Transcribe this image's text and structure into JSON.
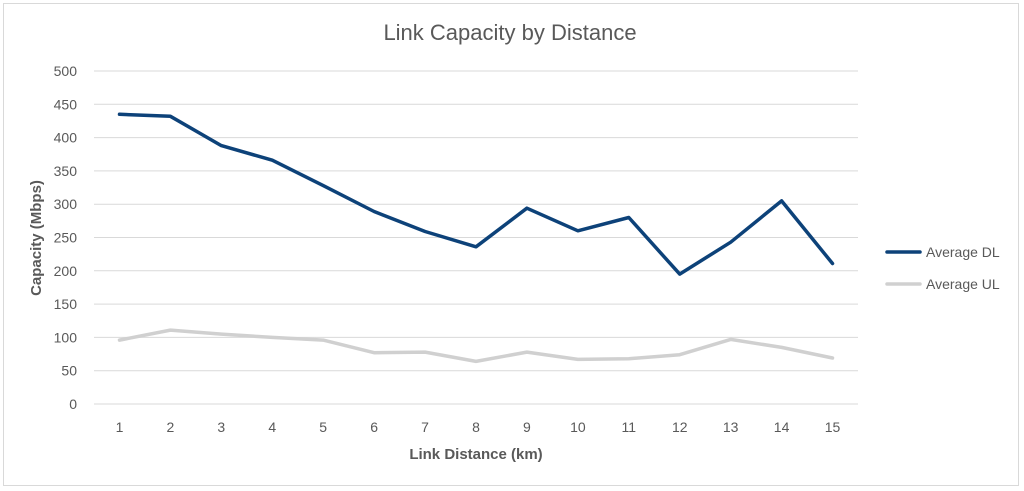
{
  "chart_data": {
    "type": "line",
    "title": "Link Capacity by Distance",
    "xlabel": "Link Distance (km)",
    "ylabel": "Capacity (Mbps)",
    "categories": [
      "1",
      "2",
      "3",
      "4",
      "5",
      "6",
      "7",
      "8",
      "9",
      "10",
      "11",
      "12",
      "13",
      "14",
      "15"
    ],
    "ylim": [
      0,
      500
    ],
    "yticks": [
      "0",
      "50",
      "100",
      "150",
      "200",
      "250",
      "300",
      "350",
      "400",
      "450",
      "500"
    ],
    "grid": true,
    "legend_position": "right",
    "series": [
      {
        "name": "Average DL",
        "color": "#0d4279",
        "values": [
          435,
          432,
          388,
          366,
          328,
          289,
          259,
          236,
          294,
          260,
          280,
          195,
          243,
          305,
          211
        ]
      },
      {
        "name": "Average UL",
        "color": "#d0d0d0",
        "values": [
          96,
          111,
          105,
          100,
          96,
          77,
          78,
          64,
          78,
          67,
          68,
          74,
          97,
          85,
          69
        ]
      }
    ]
  }
}
